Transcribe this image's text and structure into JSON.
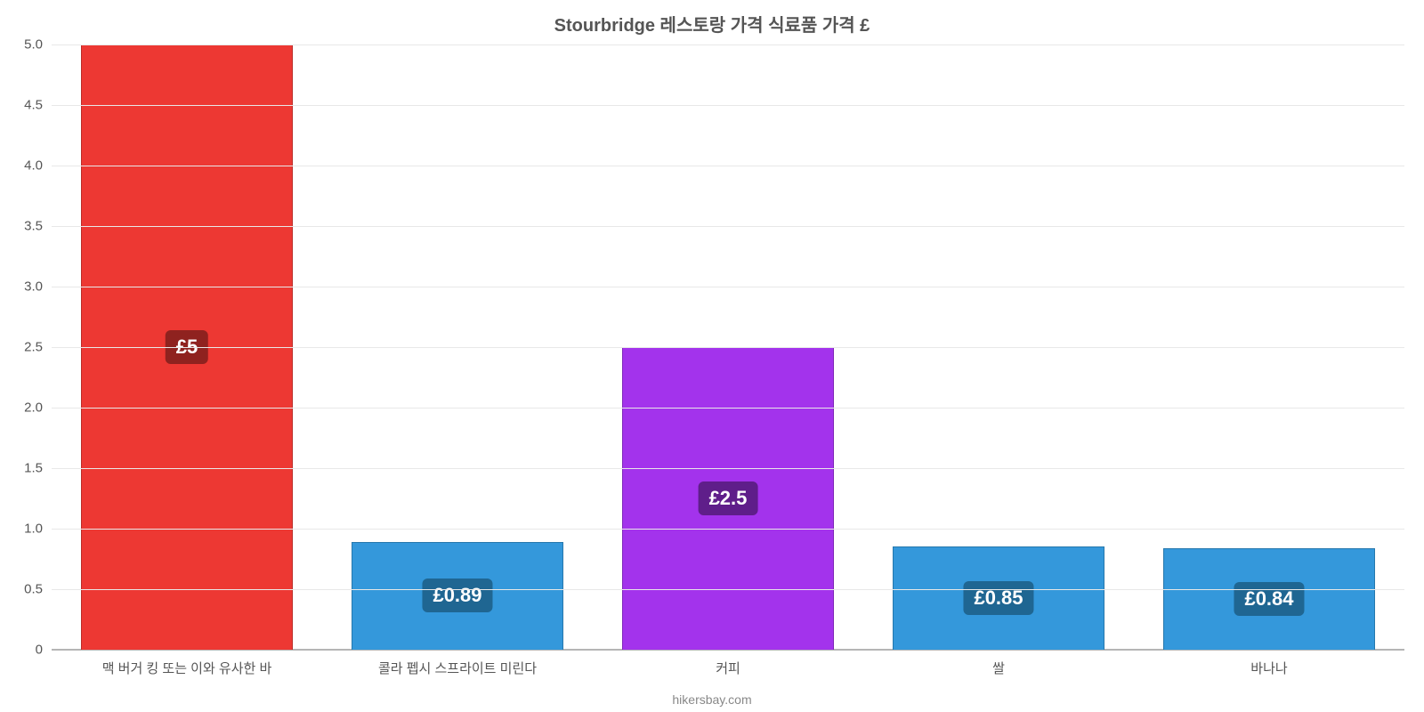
{
  "chart": {
    "title": "Stourbridge 레스토랑 가격 식료품 가격 £",
    "title_fontsize": 20,
    "title_color": "#555555",
    "attribution": "hikersbay.com",
    "background_color": "#ffffff",
    "grid_color": "#e8e8e8",
    "baseline_color": "#b5b5b5",
    "ylim": [
      0,
      5
    ],
    "ytick_step": 0.5,
    "yticks": [
      "0",
      "0.5",
      "1.0",
      "1.5",
      "2.0",
      "2.5",
      "3.0",
      "3.5",
      "4.0",
      "4.5",
      "5.0"
    ],
    "label_fontsize": 15,
    "bar_width": 0.78,
    "value_badge_fontsize": 22,
    "categories": [
      "맥 버거 킹 또는 이와 유사한 바",
      "콜라 펩시 스프라이트 미린다",
      "커피",
      "쌀",
      "바나나"
    ],
    "values": [
      5,
      0.89,
      2.5,
      0.85,
      0.84
    ],
    "value_labels": [
      "£5",
      "£0.89",
      "£2.5",
      "£0.85",
      "£0.84"
    ],
    "bar_fill_colors": [
      "#ed3833",
      "#3498db",
      "#a333ec",
      "#3498db",
      "#3498db"
    ],
    "bar_border_colors": [
      "#bb2c28",
      "#2678ad",
      "#7f28b8",
      "#2678ad",
      "#2678ad"
    ],
    "badge_bg_colors": [
      "#8f221f",
      "#1f6692",
      "#5f1e8a",
      "#1f6692",
      "#1f6692"
    ]
  }
}
